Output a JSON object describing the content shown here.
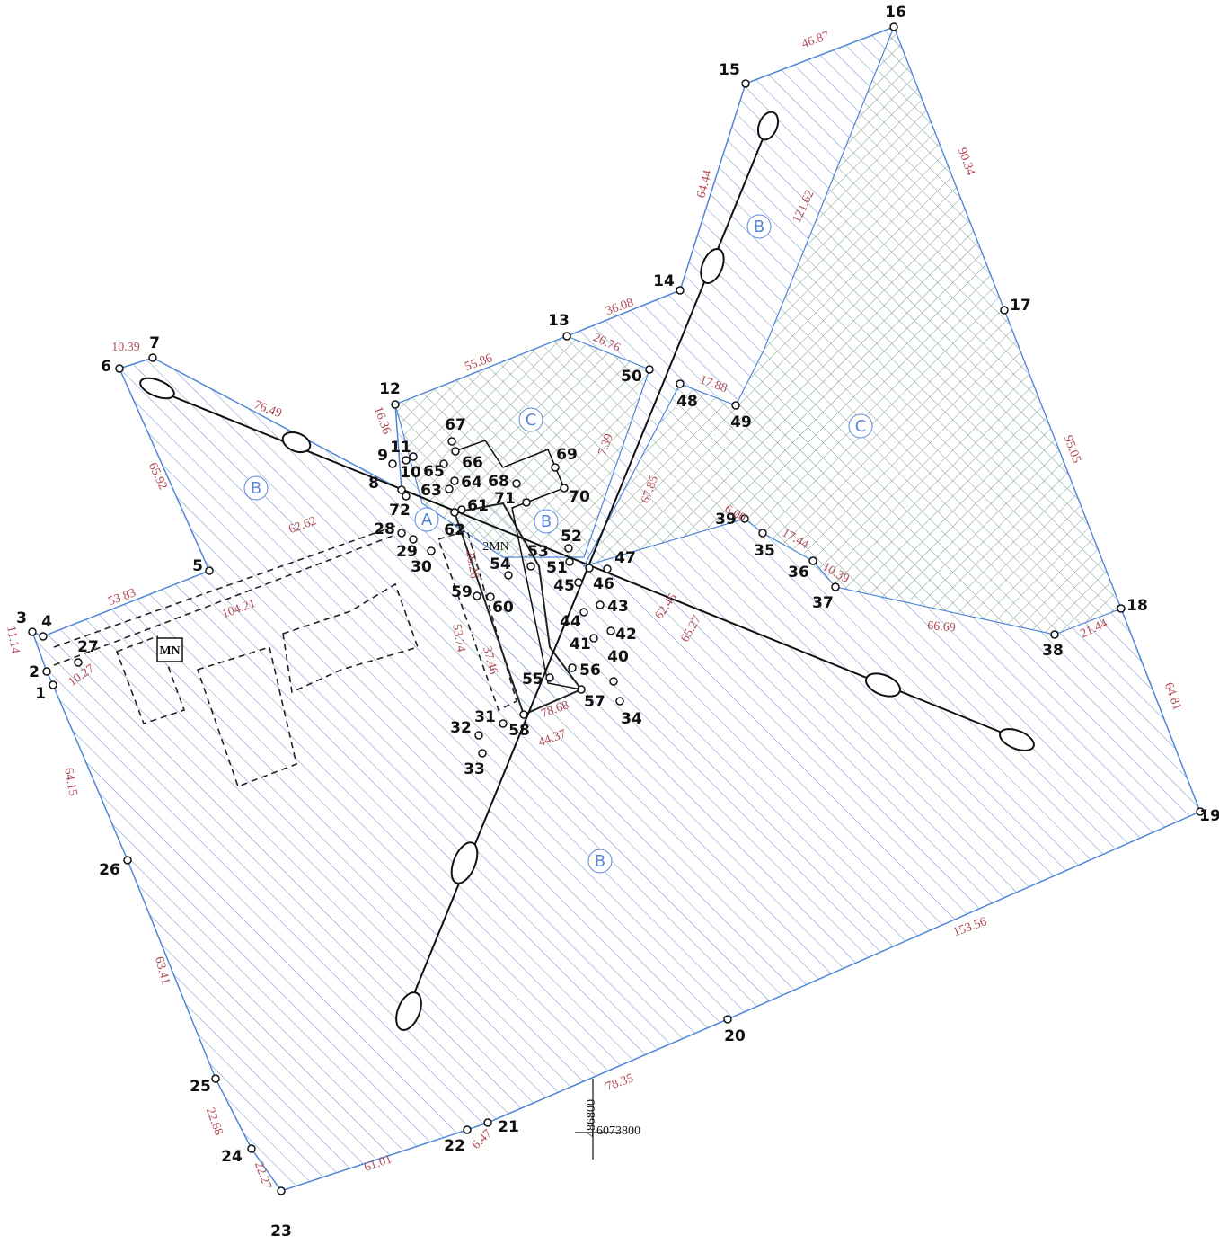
{
  "points": [
    "1",
    "2",
    "3",
    "4",
    "5",
    "6",
    "7",
    "8",
    "9",
    "10",
    "11",
    "12",
    "13",
    "14",
    "15",
    "16",
    "17",
    "18",
    "19",
    "20",
    "21",
    "22",
    "23",
    "24",
    "25",
    "26",
    "27",
    "28",
    "29",
    "30",
    "31",
    "32",
    "33",
    "34",
    "35",
    "36",
    "37",
    "38",
    "39",
    "40",
    "41",
    "42",
    "43",
    "44",
    "45",
    "46",
    "47",
    "48",
    "49",
    "50",
    "51",
    "52",
    "53",
    "54",
    "55",
    "56",
    "57",
    "58",
    "59",
    "60",
    "61",
    "62",
    "63",
    "64",
    "65",
    "66",
    "67",
    "68",
    "69",
    "70",
    "71",
    "72"
  ],
  "distances": [
    "46.87",
    "90.34",
    "64.44",
    "121.62",
    "36.08",
    "26.76",
    "55.86",
    "17.88",
    "95.05",
    "10.39",
    "76.49",
    "16.36",
    "65.92",
    "62.62",
    "53.83",
    "104.21",
    "11.14",
    "10.27",
    "6.00",
    "17.44",
    "10.39",
    "66.69",
    "21.44",
    "64.81",
    "67.85",
    "62.45",
    "65.27",
    "26.26",
    "53.74",
    "37.46",
    "78.68",
    "44.37",
    "64.15",
    "63.41",
    "22.68",
    "22.27",
    "61.01",
    "6.47",
    "78.35",
    "153.56",
    "7.39"
  ],
  "zones": [
    "A",
    "B",
    "B",
    "B",
    "B",
    "C",
    "C"
  ],
  "symbols": {
    "mn": "MN",
    "mn2": "2MN"
  },
  "grid_cross": {
    "x": "486800",
    "y": "6073800"
  }
}
